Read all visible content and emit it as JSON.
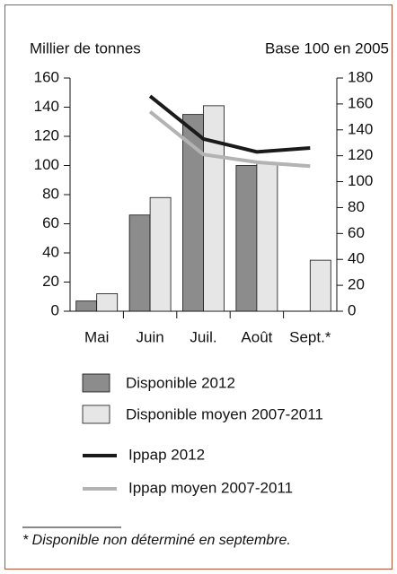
{
  "chart_data": {
    "type": "bar",
    "y_label": "Millier de tonnes",
    "y2_label": "Base 100 en 2005",
    "categories": [
      "Mai",
      "Juin",
      "Juil.",
      "Août",
      "Sept.*"
    ],
    "ylim": [
      0,
      160
    ],
    "yticks": [
      0,
      20,
      40,
      60,
      80,
      100,
      120,
      140,
      160
    ],
    "y2lim": [
      0,
      180
    ],
    "y2ticks": [
      0,
      20,
      40,
      60,
      80,
      100,
      120,
      140,
      160,
      180
    ],
    "series": [
      {
        "name": "Disponible 2012",
        "type": "bar",
        "color": "#8c8c8c",
        "values": [
          7,
          66,
          135,
          100,
          null
        ]
      },
      {
        "name": "Disponible moyen 2007-2011",
        "type": "bar",
        "color": "#e6e6e6",
        "values": [
          12,
          78,
          141,
          102,
          35
        ]
      },
      {
        "name": "Ippap 2012",
        "type": "line",
        "axis": "y2",
        "color": "#1a1a1a",
        "values": [
          null,
          166,
          133,
          123,
          126
        ]
      },
      {
        "name": "Ippap moyen 2007-2011",
        "type": "line",
        "axis": "y2",
        "color": "#b3b3b3",
        "values": [
          null,
          154,
          121,
          115,
          112
        ]
      }
    ],
    "footnote": "* Disponible non déterminé en septembre."
  }
}
